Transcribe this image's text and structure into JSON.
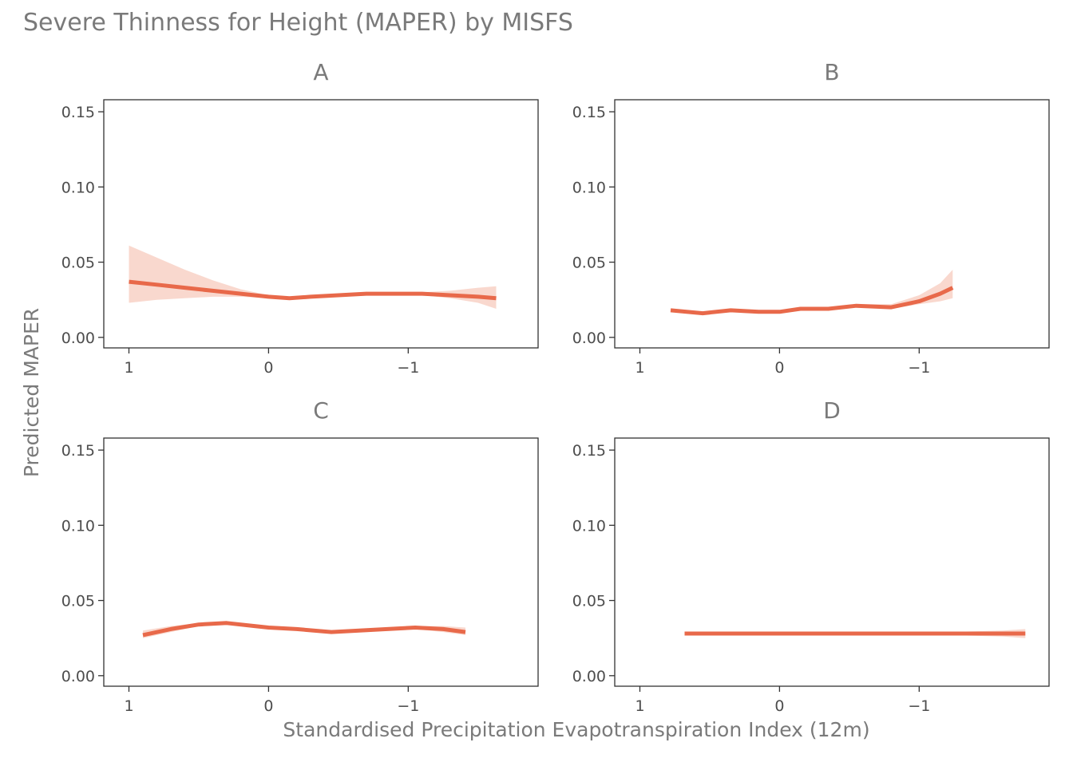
{
  "colors": {
    "line": "#E8694A",
    "ribbon": "#F8D1C6"
  },
  "chart_data": {
    "type": "line",
    "title": "Severe Thinness for Height (MAPER) by MISFS",
    "xlabel": "Standardised Precipitation Evapotranspiration Index (12m)",
    "ylabel": "Predicted MAPER",
    "xlim": [
      1.18,
      -1.93
    ],
    "ylim": [
      -0.007,
      0.158
    ],
    "x_reversed": true,
    "x_ticks": [
      1,
      0,
      -1
    ],
    "x_tick_labels": [
      "1",
      "0",
      "−1"
    ],
    "y_ticks": [
      0,
      0.05,
      0.1,
      0.15
    ],
    "y_tick_labels": [
      "0.00",
      "0.05",
      "0.10",
      "0.15"
    ],
    "grid": false,
    "legend": "none",
    "panels": [
      {
        "label": "A",
        "series": [
          {
            "x": [
              1.0,
              0.8,
              0.6,
              0.4,
              0.2,
              0.0,
              -0.15,
              -0.3,
              -0.5,
              -0.7,
              -0.9,
              -1.1,
              -1.3,
              -1.5,
              -1.63
            ],
            "y": [
              0.037,
              0.035,
              0.033,
              0.031,
              0.029,
              0.027,
              0.026,
              0.027,
              0.028,
              0.029,
              0.029,
              0.029,
              0.028,
              0.027,
              0.026
            ],
            "lower": [
              0.023,
              0.025,
              0.026,
              0.027,
              0.027,
              0.026,
              0.025,
              0.026,
              0.027,
              0.028,
              0.028,
              0.028,
              0.026,
              0.023,
              0.019
            ],
            "upper": [
              0.061,
              0.053,
              0.045,
              0.038,
              0.032,
              0.028,
              0.027,
              0.028,
              0.029,
              0.03,
              0.03,
              0.03,
              0.031,
              0.033,
              0.034
            ]
          }
        ]
      },
      {
        "label": "B",
        "series": [
          {
            "x": [
              0.78,
              0.55,
              0.35,
              0.15,
              0.0,
              -0.15,
              -0.35,
              -0.55,
              -0.8,
              -1.0,
              -1.15,
              -1.24
            ],
            "y": [
              0.018,
              0.016,
              0.018,
              0.017,
              0.017,
              0.019,
              0.019,
              0.021,
              0.02,
              0.024,
              0.029,
              0.033
            ],
            "lower": [
              0.017,
              0.015,
              0.017,
              0.016,
              0.016,
              0.018,
              0.018,
              0.02,
              0.019,
              0.022,
              0.024,
              0.026
            ],
            "upper": [
              0.019,
              0.017,
              0.019,
              0.018,
              0.018,
              0.02,
              0.02,
              0.022,
              0.022,
              0.028,
              0.036,
              0.045
            ]
          }
        ]
      },
      {
        "label": "C",
        "series": [
          {
            "x": [
              0.9,
              0.7,
              0.5,
              0.3,
              0.1,
              0.0,
              -0.2,
              -0.45,
              -0.65,
              -0.85,
              -1.05,
              -1.25,
              -1.41
            ],
            "y": [
              0.027,
              0.031,
              0.034,
              0.035,
              0.033,
              0.032,
              0.031,
              0.029,
              0.03,
              0.031,
              0.032,
              0.031,
              0.029
            ],
            "lower": [
              0.025,
              0.029,
              0.033,
              0.034,
              0.032,
              0.031,
              0.03,
              0.028,
              0.029,
              0.03,
              0.031,
              0.029,
              0.027
            ],
            "upper": [
              0.03,
              0.033,
              0.035,
              0.036,
              0.034,
              0.033,
              0.032,
              0.03,
              0.031,
              0.032,
              0.033,
              0.033,
              0.032
            ]
          }
        ]
      },
      {
        "label": "D",
        "series": [
          {
            "x": [
              0.68,
              0.3,
              0.0,
              -0.4,
              -0.8,
              -1.2,
              -1.6,
              -1.76
            ],
            "y": [
              0.028,
              0.028,
              0.028,
              0.028,
              0.028,
              0.028,
              0.028,
              0.028
            ],
            "lower": [
              0.027,
              0.027,
              0.027,
              0.027,
              0.027,
              0.027,
              0.026,
              0.025
            ],
            "upper": [
              0.029,
              0.029,
              0.029,
              0.029,
              0.029,
              0.029,
              0.03,
              0.031
            ]
          }
        ]
      }
    ]
  }
}
